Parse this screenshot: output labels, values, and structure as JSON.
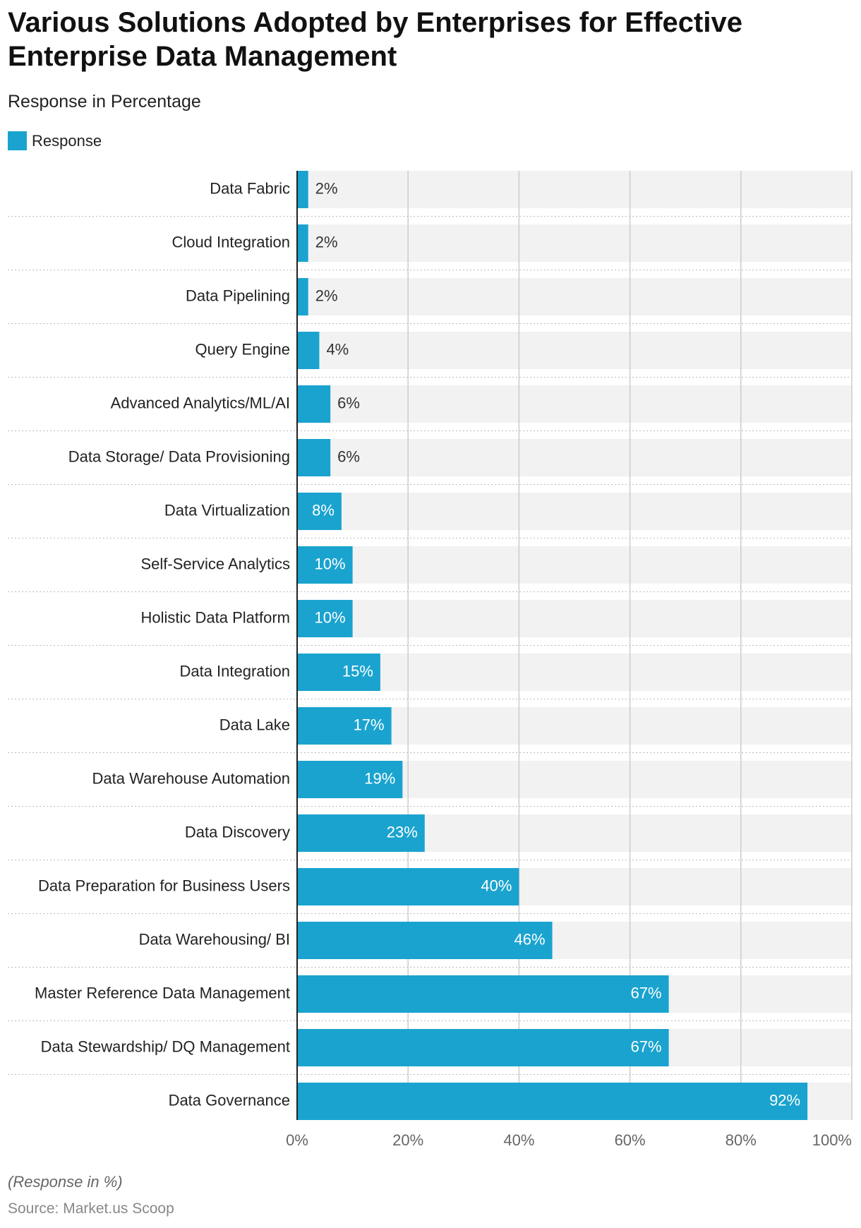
{
  "chart_data": {
    "type": "hbar",
    "title": "Various Solutions Adopted by Enterprises for Effective Enterprise Data Management",
    "subtitle": "Response in Percentage",
    "note": "(Response in %)",
    "source": "Source: Market.us Scoop",
    "categories": [
      "Data Fabric",
      "Cloud Integration",
      "Data Pipelining",
      "Query Engine",
      "Advanced Analytics/ML/AI",
      "Data Storage/ Data Provisioning",
      "Data Virtualization",
      "Self-Service Analytics",
      "Holistic Data Platform",
      "Data Integration",
      "Data Lake",
      "Data Warehouse Automation",
      "Data Discovery",
      "Data Preparation for Business Users",
      "Data Warehousing/ BI",
      "Master Reference Data Management",
      "Data Stewardship/ DQ Management",
      "Data Governance"
    ],
    "series": [
      {
        "name": "Response",
        "color": "#1aa3cf",
        "values": [
          2,
          2,
          2,
          4,
          6,
          6,
          8,
          10,
          10,
          15,
          17,
          19,
          23,
          40,
          46,
          67,
          67,
          92
        ],
        "value_labels": [
          "2%",
          "2%",
          "2%",
          "4%",
          "6%",
          "6%",
          "8%",
          "10%",
          "10%",
          "15%",
          "17%",
          "19%",
          "23%",
          "40%",
          "46%",
          "67%",
          "67%",
          "92%"
        ]
      }
    ],
    "xlim": [
      0,
      100
    ],
    "xticks": [
      {
        "value": 0,
        "label": "0%"
      },
      {
        "value": 20,
        "label": "20%"
      },
      {
        "value": 40,
        "label": "40%"
      },
      {
        "value": 60,
        "label": "60%"
      },
      {
        "value": 80,
        "label": "80%"
      },
      {
        "value": 100,
        "label": "100%"
      }
    ],
    "grid": true
  }
}
